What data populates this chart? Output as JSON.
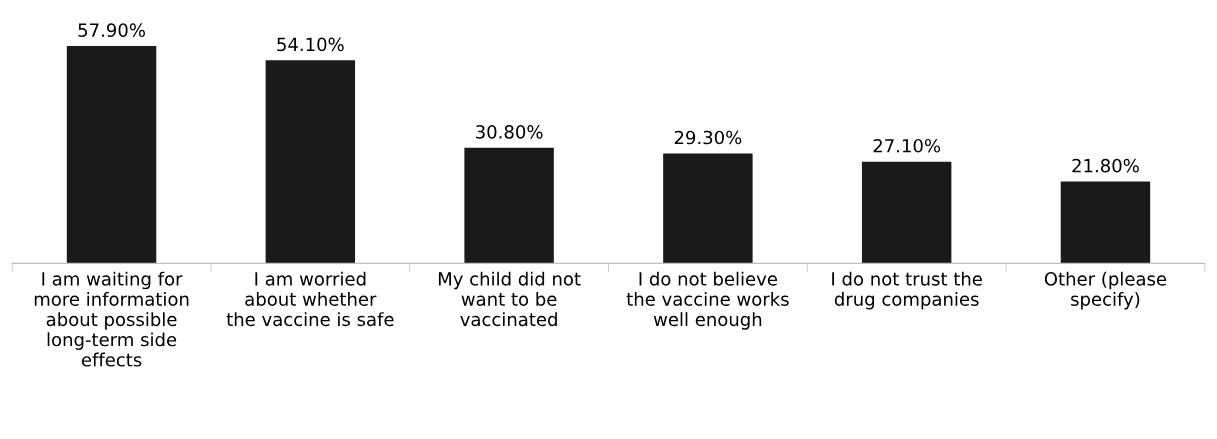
{
  "chart_data": {
    "type": "bar",
    "categories": [
      "I am waiting for\nmore information\nabout possible\nlong-term side\neffects",
      "I am worried\nabout whether\nthe vaccine is safe",
      "My child did not\nwant to be\nvaccinated",
      "I do not believe\nthe vaccine works\nwell enough",
      "I do not trust the\ndrug companies",
      "Other (please\nspecify)"
    ],
    "values": [
      57.9,
      54.1,
      30.8,
      29.3,
      27.1,
      21.8
    ],
    "value_labels": [
      "57.90%",
      "54.10%",
      "30.80%",
      "29.30%",
      "27.10%",
      "21.80%"
    ],
    "color": "#1a1a1a",
    "grid": false,
    "legend": false,
    "tick_labels": "x"
  }
}
